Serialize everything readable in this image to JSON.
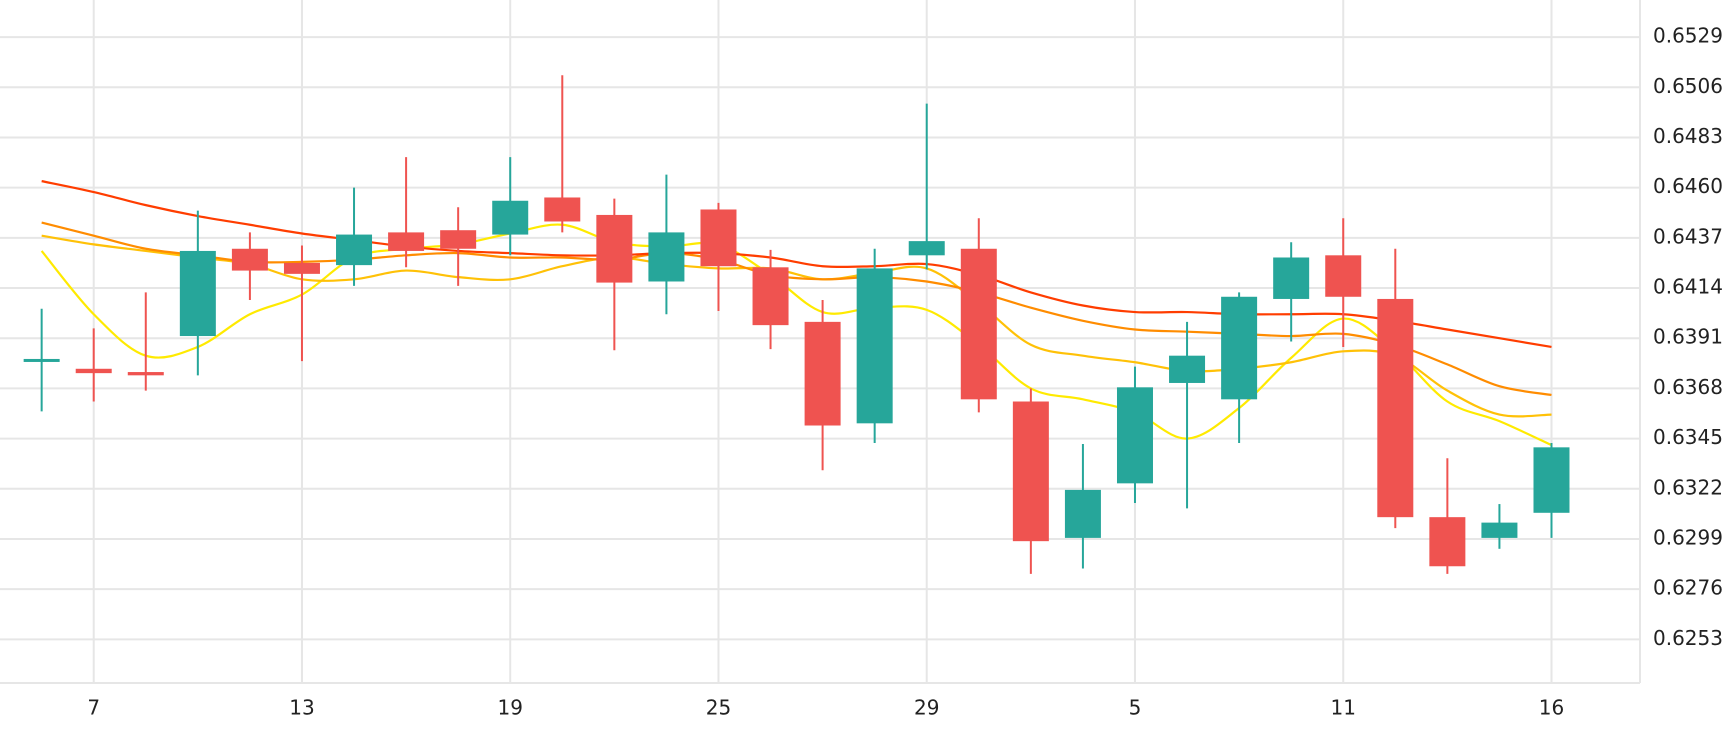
{
  "chart_data": {
    "type": "candlestick",
    "title": "",
    "xlabel": "",
    "ylabel": "",
    "x_ticks": [
      {
        "label": "7",
        "index": 1
      },
      {
        "label": "13",
        "index": 5
      },
      {
        "label": "19",
        "index": 9
      },
      {
        "label": "25",
        "index": 13
      },
      {
        "label": "29",
        "index": 17
      },
      {
        "label": "5",
        "index": 21
      },
      {
        "label": "11",
        "index": 25
      },
      {
        "label": "16",
        "index": 29
      }
    ],
    "y_ticks": [
      "0.6529",
      "0.6506",
      "0.6483",
      "0.6460",
      "0.6437",
      "0.6414",
      "0.6391",
      "0.6368",
      "0.6345",
      "0.6322",
      "0.6299",
      "0.6276",
      "0.6253"
    ],
    "ylim": [
      0.6233,
      0.6546
    ],
    "xlim": [
      -0.8,
      30.7
    ],
    "colors": {
      "up": "#26a69a",
      "down": "#ef5350",
      "grid": "#e6e6e6",
      "ma_lines": [
        "#ffea00",
        "#ffc107",
        "#ff8c00",
        "#ff3d00"
      ]
    },
    "grid": true,
    "candles": [
      {
        "open": 0.63815,
        "high": 0.64045,
        "low": 0.63575,
        "close": 0.63815
      },
      {
        "open": 0.6377,
        "high": 0.63955,
        "low": 0.6362,
        "close": 0.6375
      },
      {
        "open": 0.63755,
        "high": 0.6412,
        "low": 0.6367,
        "close": 0.6374
      },
      {
        "open": 0.6392,
        "high": 0.64495,
        "low": 0.6374,
        "close": 0.6431
      },
      {
        "open": 0.6432,
        "high": 0.64395,
        "low": 0.64085,
        "close": 0.6422
      },
      {
        "open": 0.64255,
        "high": 0.64335,
        "low": 0.63805,
        "close": 0.64205
      },
      {
        "open": 0.64245,
        "high": 0.646,
        "low": 0.6415,
        "close": 0.64385
      },
      {
        "open": 0.64395,
        "high": 0.6474,
        "low": 0.64235,
        "close": 0.6431
      },
      {
        "open": 0.64405,
        "high": 0.6451,
        "low": 0.6415,
        "close": 0.6432
      },
      {
        "open": 0.64385,
        "high": 0.6474,
        "low": 0.6429,
        "close": 0.6454
      },
      {
        "open": 0.64555,
        "high": 0.65115,
        "low": 0.64395,
        "close": 0.64445
      },
      {
        "open": 0.64475,
        "high": 0.6455,
        "low": 0.63855,
        "close": 0.64165
      },
      {
        "open": 0.6417,
        "high": 0.6466,
        "low": 0.6402,
        "close": 0.64395
      },
      {
        "open": 0.645,
        "high": 0.6453,
        "low": 0.64035,
        "close": 0.6424
      },
      {
        "open": 0.64235,
        "high": 0.64315,
        "low": 0.6386,
        "close": 0.6397
      },
      {
        "open": 0.63985,
        "high": 0.64085,
        "low": 0.63305,
        "close": 0.6351
      },
      {
        "open": 0.6352,
        "high": 0.6432,
        "low": 0.6343,
        "close": 0.6423
      },
      {
        "open": 0.6429,
        "high": 0.64985,
        "low": 0.64225,
        "close": 0.64355
      },
      {
        "open": 0.6432,
        "high": 0.6446,
        "low": 0.6357,
        "close": 0.6363
      },
      {
        "open": 0.6362,
        "high": 0.6368,
        "low": 0.6283,
        "close": 0.6298
      },
      {
        "open": 0.62995,
        "high": 0.63425,
        "low": 0.62855,
        "close": 0.63215
      },
      {
        "open": 0.63245,
        "high": 0.6378,
        "low": 0.63155,
        "close": 0.63685
      },
      {
        "open": 0.63705,
        "high": 0.63985,
        "low": 0.6313,
        "close": 0.6383
      },
      {
        "open": 0.6363,
        "high": 0.6412,
        "low": 0.6343,
        "close": 0.641
      },
      {
        "open": 0.6409,
        "high": 0.6435,
        "low": 0.63895,
        "close": 0.6428
      },
      {
        "open": 0.6429,
        "high": 0.6446,
        "low": 0.6387,
        "close": 0.641
      },
      {
        "open": 0.6409,
        "high": 0.6432,
        "low": 0.6304,
        "close": 0.6309
      },
      {
        "open": 0.6309,
        "high": 0.6336,
        "low": 0.6283,
        "close": 0.62865
      },
      {
        "open": 0.62995,
        "high": 0.6315,
        "low": 0.62945,
        "close": 0.63065
      },
      {
        "open": 0.6311,
        "high": 0.6343,
        "low": 0.62995,
        "close": 0.6341
      }
    ],
    "series": [
      {
        "color": "#ffea00",
        "values": [
          0.6431,
          0.6402,
          0.6383,
          0.6387,
          0.6402,
          0.6411,
          0.6428,
          0.6432,
          0.6434,
          0.6439,
          0.6443,
          0.6435,
          0.6433,
          0.6434,
          0.642,
          0.6403,
          0.6405,
          0.6404,
          0.6388,
          0.6368,
          0.6363,
          0.6357,
          0.6345,
          0.6359,
          0.6382,
          0.64,
          0.6385,
          0.6362,
          0.6353,
          0.6342
        ]
      },
      {
        "color": "#ffc107",
        "values": [
          0.6438,
          0.6434,
          0.6431,
          0.6428,
          0.6425,
          0.6418,
          0.6418,
          0.6422,
          0.6419,
          0.6418,
          0.6424,
          0.6428,
          0.6425,
          0.6423,
          0.6423,
          0.6418,
          0.6421,
          0.6423,
          0.6407,
          0.6388,
          0.6383,
          0.638,
          0.6376,
          0.6377,
          0.638,
          0.6385,
          0.6383,
          0.6367,
          0.6356,
          0.6356
        ]
      },
      {
        "color": "#ff8c00",
        "values": [
          0.6444,
          0.6438,
          0.6432,
          0.6429,
          0.6426,
          0.6426,
          0.6427,
          0.6429,
          0.643,
          0.6428,
          0.6428,
          0.6427,
          0.643,
          0.6427,
          0.642,
          0.6418,
          0.6419,
          0.6417,
          0.6412,
          0.6405,
          0.6399,
          0.6395,
          0.6394,
          0.6393,
          0.6392,
          0.6393,
          0.6388,
          0.6379,
          0.6369,
          0.6365
        ]
      },
      {
        "color": "#ff3d00",
        "values": [
          0.6463,
          0.6458,
          0.6452,
          0.6447,
          0.6443,
          0.6439,
          0.6436,
          0.6433,
          0.6431,
          0.643,
          0.6429,
          0.6429,
          0.643,
          0.643,
          0.6428,
          0.6424,
          0.6424,
          0.6425,
          0.642,
          0.6412,
          0.6406,
          0.6403,
          0.6403,
          0.6402,
          0.6402,
          0.6402,
          0.6399,
          0.6395,
          0.6391,
          0.6387
        ]
      }
    ]
  }
}
